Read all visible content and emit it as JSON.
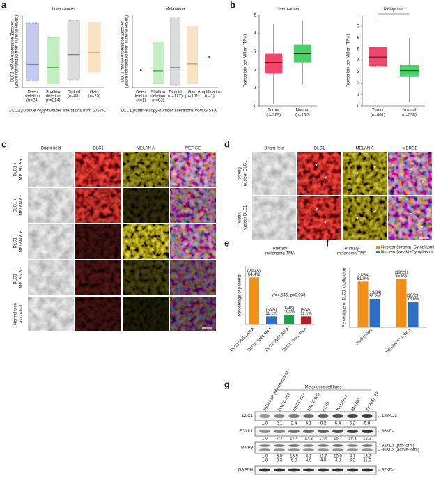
{
  "panel_letters": [
    "a",
    "b",
    "c",
    "d",
    "e",
    "f",
    "g"
  ],
  "chart_data": [
    {
      "type": "strip",
      "title": "Liver cancer",
      "ylabel": [
        "DLC1 mRNA expression Zscores",
        "(Batch normalized from Illumina HiSeq)"
      ],
      "xlabel": "DLC1 putative copy-number alterations from GISTIC",
      "categories": [
        [
          "Deep",
          "deletion"
        ],
        [
          "Shallow",
          "deletion"
        ],
        [
          "Diploid"
        ],
        [
          "Gain"
        ]
      ],
      "n_labels": [
        "(n=24)",
        "(n=214)",
        "(n=85)",
        "(n=25)"
      ],
      "values": [
        -0.7,
        -0.9,
        0.1,
        0.3
      ],
      "ranges": [
        [
          -2,
          2.6
        ],
        [
          -2.2,
          1.5
        ],
        [
          -1.9,
          2.8
        ],
        [
          -1.3,
          2.7
        ]
      ],
      "colors": [
        "#3a4fc4",
        "#3cc43c",
        "#888888",
        "#e8a23a"
      ],
      "ylim": [
        -2.5,
        3.2
      ]
    },
    {
      "type": "strip",
      "title": "Melanoma",
      "ylabel": [
        "DLC1 mRNA expression Zscores",
        "(Batch normalized from Illumina HiSeq)"
      ],
      "xlabel": "DLC1 putative copy-number alterations from GISTIC",
      "categories": [
        [
          "Deep",
          "deletion"
        ],
        [
          "Shallow",
          "deletion"
        ],
        [
          "Diploid"
        ],
        [
          "Gain"
        ],
        [
          "Amplification"
        ]
      ],
      "n_labels": [
        "(n=1)",
        "(n=83)",
        "(n=177)",
        "(n=101)",
        "(n=1)"
      ],
      "values": [
        -0.6,
        -0.7,
        -0.3,
        0.1,
        0.9
      ],
      "ranges": [
        null,
        [
          -2.1,
          2.6
        ],
        [
          -2.3,
          5.3
        ],
        [
          -2.1,
          4.4
        ],
        null
      ],
      "colors": [
        "#222266",
        "#3cc43c",
        "#888888",
        "#e8a23a",
        "#d42030"
      ],
      "ylim": [
        -2.6,
        5.6
      ]
    },
    {
      "type": "box",
      "title": "Liver cancer",
      "ylabel": "Transcripts per Million (TPM)",
      "categories": [
        "Tumor",
        "Normal"
      ],
      "n_labels": [
        "(n=369)",
        "(n=160)"
      ],
      "boxes": [
        {
          "whisker_low": 0.1,
          "q1": 1.8,
          "median": 2.4,
          "q3": 2.9,
          "whisker_high": 4.5
        },
        {
          "whisker_low": 1.2,
          "q1": 2.4,
          "median": 2.9,
          "q3": 3.4,
          "whisker_high": 4.7
        }
      ],
      "colors": [
        "#f0325a",
        "#33cc55"
      ],
      "ylim": [
        0,
        5
      ],
      "yticks": [
        0,
        1,
        2,
        3,
        4,
        5
      ]
    },
    {
      "type": "box",
      "title": "Melanoma",
      "ylabel": "Transcripts per Million (TPM)",
      "categories": [
        "Tumor",
        "Normal"
      ],
      "n_labels": [
        "(n=461)",
        "(n=558)"
      ],
      "boxes": [
        {
          "whisker_low": 0.1,
          "q1": 3.5,
          "median": 4.3,
          "q3": 5.2,
          "whisker_high": 7.6
        },
        {
          "whisker_low": 0.3,
          "q1": 2.6,
          "median": 3.1,
          "q3": 3.6,
          "whisker_high": 6.0
        }
      ],
      "colors": [
        "#f0325a",
        "#33cc55"
      ],
      "ylim": [
        0,
        8
      ],
      "yticks": [
        0,
        1,
        2,
        3,
        4,
        5,
        6,
        7
      ],
      "annotation": "*"
    },
    {
      "type": "bar",
      "title": [
        "Primary",
        "melanoma TMA"
      ],
      "ylabel": "Percentage of patients",
      "categories": [
        "DLC1⁺/MELAN A⁺",
        "DLC1⁺/MELAN A⁻",
        "DLC1⁻/MELAN A⁺",
        "DLC1⁻/MELAN A⁻"
      ],
      "values": [
        64.4,
        11.1,
        13.3,
        11.1
      ],
      "value_labels": [
        [
          "(29/45)",
          "64.4%"
        ],
        [
          "(5/45)",
          "11.1%"
        ],
        [
          "(6/45)",
          "13.3%"
        ],
        [
          "(5/45)",
          "11.1%"
        ]
      ],
      "colors": [
        "#f39019",
        "#2d6fc4",
        "#1e9e4a",
        "#b01e2a"
      ],
      "ylim": [
        0,
        80
      ],
      "annotation": "χ²=4.546, p=0.033"
    },
    {
      "type": "grouped_bar",
      "title": [
        "Primary",
        "melanoma TMA"
      ],
      "ylabel": "Percentage of DLC1 localization",
      "categories": [
        "Total cohort",
        "MELAN A⁺ cohort"
      ],
      "series": [
        {
          "name": "Nuclear (strong)+Cytoplasmic",
          "color": "#f39019",
          "values": [
            61.8,
            65.5
          ],
          "value_labels": [
            [
              "(21/34)",
              "61.8%"
            ],
            [
              "(19/29)",
              "65.5%"
            ]
          ]
        },
        {
          "name": "Nuclear (weak)+Cytoplasmic",
          "color": "#2d6fc4",
          "values": [
            38.2,
            34.5
          ],
          "value_labels": [
            [
              "(13/34)",
              "38.2%"
            ],
            [
              "(10/29)",
              "34.5%"
            ]
          ]
        }
      ],
      "ylim": [
        0,
        80
      ],
      "legend": "top-right"
    }
  ],
  "micrographs": {
    "c": {
      "columns": [
        "Bright field",
        "DLC1",
        "MELAN A",
        "MERGE"
      ],
      "rows": [
        [
          "DLC1 +",
          "MELAN A +"
        ],
        [
          "DLC1 +",
          "MELAN A -"
        ],
        [
          "DLC1 -",
          "MELAN A +"
        ],
        [
          "DLC1 -",
          "MELAN A -"
        ],
        [
          "Normal skin",
          "as control"
        ]
      ]
    },
    "d": {
      "columns": [
        "Bright field",
        "DLC1",
        "MELAN A",
        "MERGE"
      ],
      "rows": [
        [
          "Strong",
          "nuclear DLC1"
        ],
        [
          "Weak",
          "nuclear DLC1"
        ]
      ]
    }
  },
  "blot": {
    "group_label": "Melanoma cell lines",
    "lanes": [
      "HEMn-LP (Melanocytes)",
      "UACC-457",
      "UACC-827",
      "UACC-903",
      "A375",
      "WM266-4",
      "Mel300",
      "SK-MEL-28"
    ],
    "rows": [
      {
        "label": "DLC1",
        "markers": [
          "←123KDa"
        ],
        "quant": [
          [
            "1.0",
            "2.1",
            "2.4",
            "5.1",
            "8.2",
            "5.4",
            "5.2",
            "5.8"
          ]
        ]
      },
      {
        "label": "FOXK1",
        "markers": [
          "←66KDa"
        ],
        "quant": [
          [
            "1.0",
            "7.3",
            "17.4",
            "17.2",
            "13.4",
            "15.7",
            "18.1",
            "12.3"
          ]
        ]
      },
      {
        "label": "MMP9",
        "markers": [
          "←92KDa (pro-form)",
          "←86KDa (active-form)"
        ],
        "quant": [
          [
            "1.0",
            "3.5",
            "18.9",
            "8.1",
            "11.7",
            "15.0",
            "4.7",
            "13.7"
          ],
          [
            "1.0",
            "3.3",
            "6.0",
            "4.9",
            "4.8",
            "4.3",
            "5.3",
            "11.0"
          ]
        ]
      },
      {
        "label": "GAPDH",
        "markers": [
          "←37KDa"
        ]
      }
    ]
  }
}
